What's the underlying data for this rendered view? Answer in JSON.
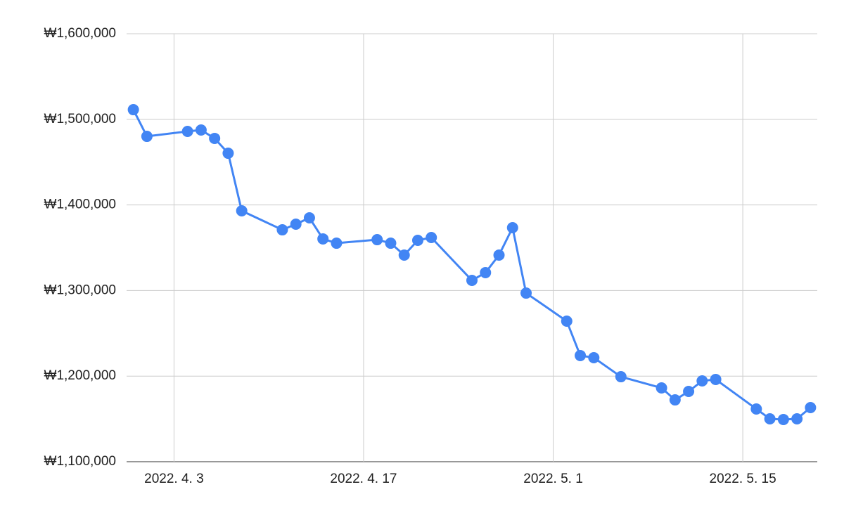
{
  "chart_data": {
    "type": "line",
    "x": [
      "2022-03-31",
      "2022-04-01",
      "2022-04-04",
      "2022-04-05",
      "2022-04-06",
      "2022-04-07",
      "2022-04-08",
      "2022-04-11",
      "2022-04-12",
      "2022-04-13",
      "2022-04-14",
      "2022-04-15",
      "2022-04-18",
      "2022-04-19",
      "2022-04-20",
      "2022-04-21",
      "2022-04-22",
      "2022-04-25",
      "2022-04-26",
      "2022-04-27",
      "2022-04-28",
      "2022-04-29",
      "2022-05-02",
      "2022-05-03",
      "2022-05-04",
      "2022-05-06",
      "2022-05-09",
      "2022-05-10",
      "2022-05-11",
      "2022-05-12",
      "2022-05-13",
      "2022-05-16",
      "2022-05-17",
      "2022-05-18",
      "2022-05-19",
      "2022-05-20"
    ],
    "values": [
      1511300,
      1480100,
      1485900,
      1487500,
      1477700,
      1460400,
      1393100,
      1370900,
      1377500,
      1384900,
      1360300,
      1355300,
      1359400,
      1355300,
      1341400,
      1358600,
      1361900,
      1311800,
      1320900,
      1341400,
      1373400,
      1297000,
      1264200,
      1224000,
      1221500,
      1199300,
      1186200,
      1172200,
      1182100,
      1194400,
      1196100,
      1161600,
      1150100,
      1149300,
      1150100,
      1163200
    ],
    "color": "#4285f4",
    "xlim": [
      "2022-03-30T12:00",
      "2022-05-20T12:00"
    ],
    "xticks": [
      {
        "value": "2022-04-03",
        "label": "2022. 4. 3"
      },
      {
        "value": "2022-04-17",
        "label": "2022. 4. 17"
      },
      {
        "value": "2022-05-01",
        "label": "2022. 5. 1"
      },
      {
        "value": "2022-05-15",
        "label": "2022. 5. 15"
      }
    ],
    "ylim": [
      1100000,
      1600000
    ],
    "yticks": [
      {
        "value": 1100000,
        "label": "₩1,100,000"
      },
      {
        "value": 1200000,
        "label": "₩1,200,000"
      },
      {
        "value": 1300000,
        "label": "₩1,300,000"
      },
      {
        "value": 1400000,
        "label": "₩1,400,000"
      },
      {
        "value": 1500000,
        "label": "₩1,500,000"
      },
      {
        "value": 1600000,
        "label": "₩1,600,000"
      }
    ],
    "grid": true
  }
}
